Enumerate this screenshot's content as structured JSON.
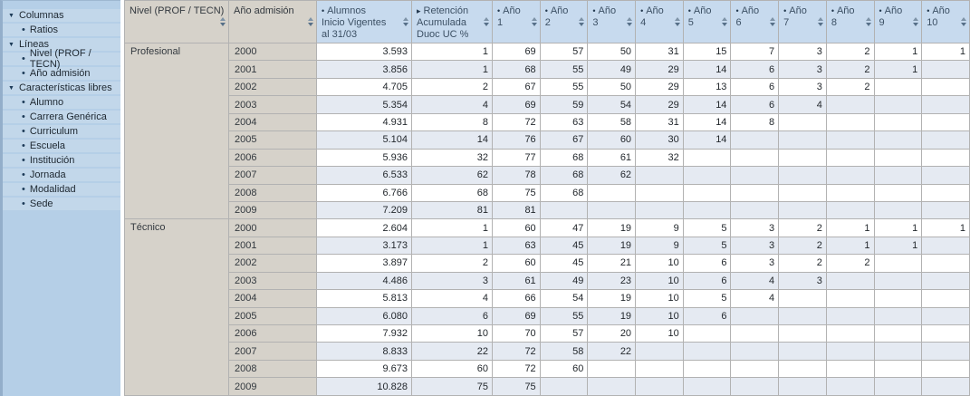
{
  "icons": {
    "group_triangle": "▼",
    "item_bullet": "•",
    "sort_icon_name": "sort-arrows-icon"
  },
  "colors": {
    "sidebar_bg": "#b5cfe7",
    "sidebar_row_bg": "#c2d7ea",
    "header_gray": "#d6d2ca",
    "header_blue": "#c7daee",
    "alt_row": "#e5eaf2",
    "grid_line": "#b2b2b2"
  },
  "sidebar": {
    "groups": [
      {
        "label": "Columnas",
        "items": [
          "Ratios"
        ]
      },
      {
        "label": "Líneas",
        "items": [
          "Nivel (PROF / TECN)",
          "Año admisión"
        ]
      },
      {
        "label": "Características libres",
        "items": [
          "Alumno",
          "Carrera Genérica",
          "Curriculum",
          "Escuela",
          "Institución",
          "Jornada",
          "Modalidad",
          "Sede"
        ]
      }
    ]
  },
  "table": {
    "dimension_headers": [
      "Nivel (PROF / TECN)",
      "Año admisión"
    ],
    "measures": [
      {
        "prefix": "•",
        "label": "Alumnos\nInicio Vigentes\nal 31/03"
      },
      {
        "prefix": "▸",
        "label": "Retención\nAcumulada\nDuoc UC %"
      },
      {
        "prefix": "•",
        "label": "Año\n1"
      },
      {
        "prefix": "•",
        "label": "Año\n2"
      },
      {
        "prefix": "•",
        "label": "Año\n3"
      },
      {
        "prefix": "•",
        "label": "Año\n4"
      },
      {
        "prefix": "•",
        "label": "Año\n5"
      },
      {
        "prefix": "•",
        "label": "Año\n6"
      },
      {
        "prefix": "•",
        "label": "Año\n7"
      },
      {
        "prefix": "•",
        "label": "Año\n8"
      },
      {
        "prefix": "•",
        "label": "Año\n9"
      },
      {
        "prefix": "•",
        "label": "Año\n10"
      }
    ],
    "groups": [
      {
        "nivel": "Profesional",
        "rows": [
          {
            "year": "2000",
            "alumnos": "3.593",
            "retencion": "1",
            "anios": [
              "69",
              "57",
              "50",
              "31",
              "15",
              "7",
              "3",
              "2",
              "1",
              "1"
            ]
          },
          {
            "year": "2001",
            "alumnos": "3.856",
            "retencion": "1",
            "anios": [
              "68",
              "55",
              "49",
              "29",
              "14",
              "6",
              "3",
              "2",
              "1",
              ""
            ]
          },
          {
            "year": "2002",
            "alumnos": "4.705",
            "retencion": "2",
            "anios": [
              "67",
              "55",
              "50",
              "29",
              "13",
              "6",
              "3",
              "2",
              "",
              ""
            ]
          },
          {
            "year": "2003",
            "alumnos": "5.354",
            "retencion": "4",
            "anios": [
              "69",
              "59",
              "54",
              "29",
              "14",
              "6",
              "4",
              "",
              "",
              ""
            ]
          },
          {
            "year": "2004",
            "alumnos": "4.931",
            "retencion": "8",
            "anios": [
              "72",
              "63",
              "58",
              "31",
              "14",
              "8",
              "",
              "",
              "",
              ""
            ]
          },
          {
            "year": "2005",
            "alumnos": "5.104",
            "retencion": "14",
            "anios": [
              "76",
              "67",
              "60",
              "30",
              "14",
              "",
              "",
              "",
              "",
              ""
            ]
          },
          {
            "year": "2006",
            "alumnos": "5.936",
            "retencion": "32",
            "anios": [
              "77",
              "68",
              "61",
              "32",
              "",
              "",
              "",
              "",
              "",
              ""
            ]
          },
          {
            "year": "2007",
            "alumnos": "6.533",
            "retencion": "62",
            "anios": [
              "78",
              "68",
              "62",
              "",
              "",
              "",
              "",
              "",
              "",
              ""
            ]
          },
          {
            "year": "2008",
            "alumnos": "6.766",
            "retencion": "68",
            "anios": [
              "75",
              "68",
              "",
              "",
              "",
              "",
              "",
              "",
              "",
              ""
            ]
          },
          {
            "year": "2009",
            "alumnos": "7.209",
            "retencion": "81",
            "anios": [
              "81",
              "",
              "",
              "",
              "",
              "",
              "",
              "",
              "",
              ""
            ]
          }
        ]
      },
      {
        "nivel": "Técnico",
        "rows": [
          {
            "year": "2000",
            "alumnos": "2.604",
            "retencion": "1",
            "anios": [
              "60",
              "47",
              "19",
              "9",
              "5",
              "3",
              "2",
              "1",
              "1",
              "1"
            ]
          },
          {
            "year": "2001",
            "alumnos": "3.173",
            "retencion": "1",
            "anios": [
              "63",
              "45",
              "19",
              "9",
              "5",
              "3",
              "2",
              "1",
              "1",
              ""
            ]
          },
          {
            "year": "2002",
            "alumnos": "3.897",
            "retencion": "2",
            "anios": [
              "60",
              "45",
              "21",
              "10",
              "6",
              "3",
              "2",
              "2",
              "",
              ""
            ]
          },
          {
            "year": "2003",
            "alumnos": "4.486",
            "retencion": "3",
            "anios": [
              "61",
              "49",
              "23",
              "10",
              "6",
              "4",
              "3",
              "",
              "",
              ""
            ]
          },
          {
            "year": "2004",
            "alumnos": "5.813",
            "retencion": "4",
            "anios": [
              "66",
              "54",
              "19",
              "10",
              "5",
              "4",
              "",
              "",
              "",
              ""
            ]
          },
          {
            "year": "2005",
            "alumnos": "6.080",
            "retencion": "6",
            "anios": [
              "69",
              "55",
              "19",
              "10",
              "6",
              "",
              "",
              "",
              "",
              ""
            ]
          },
          {
            "year": "2006",
            "alumnos": "7.932",
            "retencion": "10",
            "anios": [
              "70",
              "57",
              "20",
              "10",
              "",
              "",
              "",
              "",
              "",
              ""
            ]
          },
          {
            "year": "2007",
            "alumnos": "8.833",
            "retencion": "22",
            "anios": [
              "72",
              "58",
              "22",
              "",
              "",
              "",
              "",
              "",
              "",
              ""
            ]
          },
          {
            "year": "2008",
            "alumnos": "9.673",
            "retencion": "60",
            "anios": [
              "72",
              "60",
              "",
              "",
              "",
              "",
              "",
              "",
              "",
              ""
            ]
          },
          {
            "year": "2009",
            "alumnos": "10.828",
            "retencion": "75",
            "anios": [
              "75",
              "",
              "",
              "",
              "",
              "",
              "",
              "",
              "",
              ""
            ]
          }
        ]
      }
    ]
  }
}
